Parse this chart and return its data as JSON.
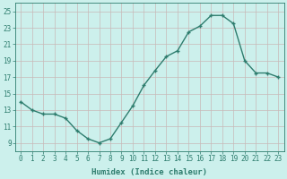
{
  "x": [
    0,
    1,
    2,
    3,
    4,
    5,
    6,
    7,
    8,
    9,
    10,
    11,
    12,
    13,
    14,
    15,
    16,
    17,
    18,
    19,
    20,
    21,
    22,
    23
  ],
  "y": [
    14.0,
    13.0,
    12.5,
    12.5,
    12.0,
    10.5,
    9.5,
    9.0,
    9.5,
    11.5,
    13.5,
    16.0,
    17.8,
    19.5,
    20.2,
    22.5,
    23.2,
    24.5,
    24.5,
    23.5,
    19.0,
    17.5,
    17.5,
    17.0
  ],
  "line_color": "#2e7d6e",
  "marker": "P",
  "marker_size": 2.5,
  "bg_color": "#ccf0ec",
  "grid_color": "#c8b8b8",
  "tick_color": "#2e7d6e",
  "label_color": "#2e7d6e",
  "xlabel": "Humidex (Indice chaleur)",
  "xlim": [
    -0.5,
    23.5
  ],
  "ylim": [
    8,
    26
  ],
  "yticks": [
    9,
    11,
    13,
    15,
    17,
    19,
    21,
    23,
    25
  ],
  "xticks": [
    0,
    1,
    2,
    3,
    4,
    5,
    6,
    7,
    8,
    9,
    10,
    11,
    12,
    13,
    14,
    15,
    16,
    17,
    18,
    19,
    20,
    21,
    22,
    23
  ],
  "xtick_labels": [
    "0",
    "1",
    "2",
    "3",
    "4",
    "5",
    "6",
    "7",
    "8",
    "9",
    "10",
    "11",
    "12",
    "13",
    "14",
    "15",
    "16",
    "17",
    "18",
    "19",
    "20",
    "21",
    "22",
    "23"
  ],
  "linewidth": 1.0,
  "xlabel_fontsize": 6.5,
  "tick_fontsize": 5.5
}
